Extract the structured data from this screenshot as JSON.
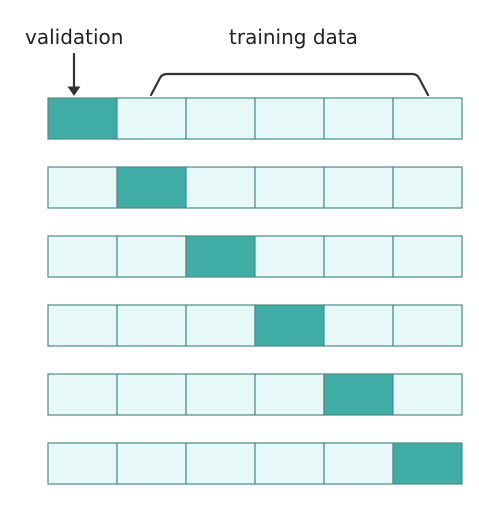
{
  "labels": {
    "validation": "validation",
    "training": "training data"
  },
  "folds": {
    "count": 6,
    "cells_per_fold": 6,
    "validation_index": [
      0,
      1,
      2,
      3,
      4,
      5
    ]
  },
  "colors": {
    "validation_fill": "#3fada5",
    "training_fill": "#e6f8f8",
    "cell_border": "#4e8b85",
    "marker_color": "#333333"
  }
}
